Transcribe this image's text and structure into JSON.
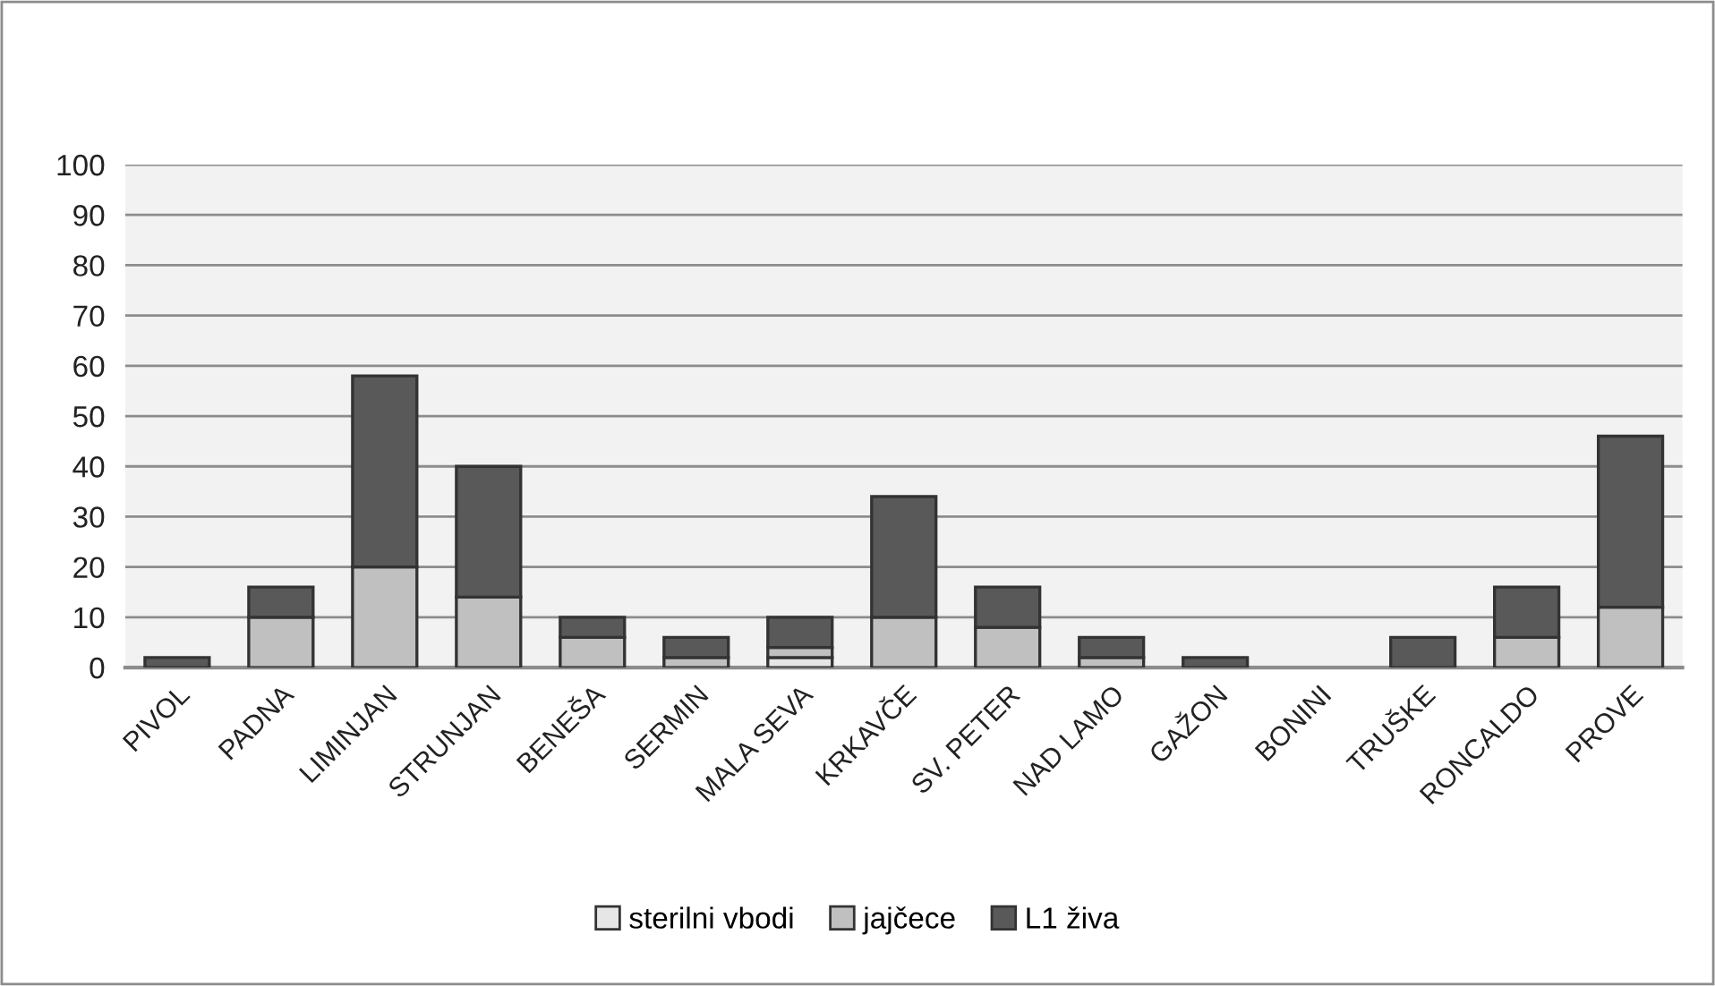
{
  "chart_data": {
    "type": "bar",
    "stacked": true,
    "categories": [
      "PIVOL",
      "PADNA",
      "LIMINJAN",
      "STRUNJAN",
      "BENEŠA",
      "SERMIN",
      "MALA SEVA",
      "KRKAVČE",
      "SV. PETER",
      "NAD LAMO",
      "GAŽON",
      "BONINI",
      "TRUŠKE",
      "RONCALDO",
      "PROVE"
    ],
    "series": [
      {
        "name": "sterilni vbodi",
        "color": "#e6e6e6",
        "values": [
          0,
          0,
          0,
          0,
          0,
          0,
          2,
          0,
          0,
          0,
          0,
          0,
          0,
          0,
          0
        ]
      },
      {
        "name": "jajčece",
        "color": "#c0c0c0",
        "values": [
          0,
          10,
          20,
          14,
          6,
          2,
          2,
          10,
          8,
          2,
          0,
          0,
          0,
          6,
          12
        ]
      },
      {
        "name": "L1 živa",
        "color": "#595959",
        "values": [
          2,
          6,
          38,
          26,
          4,
          4,
          6,
          24,
          8,
          4,
          2,
          0,
          6,
          10,
          34
        ]
      }
    ],
    "ylim": [
      0,
      100
    ],
    "yticks": [
      0,
      10,
      20,
      30,
      40,
      50,
      60,
      70,
      80,
      90,
      100
    ],
    "grid": "y",
    "legend": "bottom"
  }
}
